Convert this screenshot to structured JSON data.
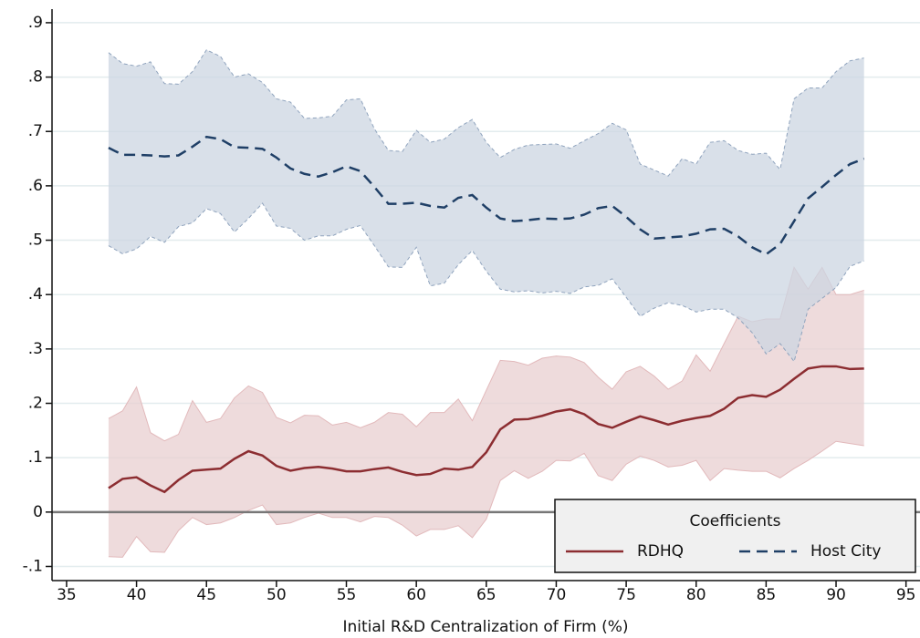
{
  "chart_data": {
    "type": "line",
    "x_label": "Initial R&D Centralization of Firm (%)",
    "x": [
      38,
      39,
      40,
      41,
      42,
      43,
      44,
      45,
      46,
      47,
      48,
      49,
      50,
      51,
      52,
      53,
      54,
      55,
      56,
      57,
      58,
      59,
      60,
      61,
      62,
      63,
      64,
      65,
      66,
      67,
      68,
      69,
      70,
      71,
      72,
      73,
      74,
      75,
      76,
      77,
      78,
      79,
      80,
      81,
      82,
      83,
      84,
      85,
      86,
      87,
      88,
      89,
      90,
      91,
      92
    ],
    "series": [
      {
        "name": "RDHQ",
        "color": "#8c2d31",
        "band_color": "#e8cfd0",
        "dash": false,
        "values": [
          0.044,
          0.061,
          0.064,
          0.049,
          0.037,
          0.059,
          0.076,
          0.078,
          0.08,
          0.098,
          0.112,
          0.104,
          0.085,
          0.076,
          0.081,
          0.083,
          0.08,
          0.075,
          0.075,
          0.079,
          0.082,
          0.074,
          0.068,
          0.07,
          0.08,
          0.078,
          0.083,
          0.11,
          0.152,
          0.17,
          0.171,
          0.177,
          0.185,
          0.189,
          0.18,
          0.162,
          0.155,
          0.166,
          0.176,
          0.169,
          0.161,
          0.168,
          0.173,
          0.177,
          0.19,
          0.21,
          0.215,
          0.212,
          0.225,
          0.245,
          0.264,
          0.268,
          0.268,
          0.263,
          0.264
        ],
        "upper": [
          0.172,
          0.186,
          0.23,
          0.146,
          0.131,
          0.143,
          0.205,
          0.165,
          0.172,
          0.21,
          0.232,
          0.22,
          0.174,
          0.164,
          0.178,
          0.177,
          0.16,
          0.165,
          0.155,
          0.165,
          0.183,
          0.18,
          0.157,
          0.183,
          0.183,
          0.208,
          0.168,
          0.224,
          0.279,
          0.277,
          0.27,
          0.283,
          0.287,
          0.285,
          0.275,
          0.248,
          0.226,
          0.258,
          0.268,
          0.25,
          0.226,
          0.241,
          0.289,
          0.259,
          0.31,
          0.36,
          0.35,
          0.355,
          0.355,
          0.45,
          0.41,
          0.45,
          0.4,
          0.4,
          0.408
        ],
        "lower": [
          -0.082,
          -0.083,
          -0.045,
          -0.073,
          -0.074,
          -0.034,
          -0.01,
          -0.023,
          -0.02,
          -0.01,
          0.003,
          0.013,
          -0.023,
          -0.02,
          -0.01,
          -0.002,
          -0.01,
          -0.01,
          -0.018,
          -0.008,
          -0.01,
          -0.024,
          -0.044,
          -0.032,
          -0.032,
          -0.025,
          -0.047,
          -0.013,
          0.058,
          0.076,
          0.062,
          0.075,
          0.095,
          0.094,
          0.108,
          0.067,
          0.058,
          0.088,
          0.103,
          0.095,
          0.083,
          0.086,
          0.095,
          0.058,
          0.08,
          0.077,
          0.075,
          0.075,
          0.063,
          0.08,
          0.095,
          0.112,
          0.13,
          0.126,
          0.122
        ]
      },
      {
        "name": "Host City",
        "color": "#1f3f66",
        "band_color": "#ccd6e2",
        "dash": true,
        "values": [
          0.67,
          0.657,
          0.657,
          0.656,
          0.654,
          0.656,
          0.672,
          0.69,
          0.686,
          0.671,
          0.67,
          0.668,
          0.652,
          0.632,
          0.622,
          0.617,
          0.625,
          0.636,
          0.627,
          0.598,
          0.567,
          0.567,
          0.569,
          0.563,
          0.56,
          0.578,
          0.583,
          0.56,
          0.54,
          0.535,
          0.537,
          0.54,
          0.539,
          0.54,
          0.547,
          0.559,
          0.563,
          0.543,
          0.52,
          0.503,
          0.505,
          0.507,
          0.512,
          0.52,
          0.521,
          0.507,
          0.487,
          0.474,
          0.493,
          0.535,
          0.577,
          0.598,
          0.62,
          0.64,
          0.65
        ],
        "upper": [
          0.845,
          0.825,
          0.82,
          0.828,
          0.788,
          0.787,
          0.81,
          0.85,
          0.838,
          0.8,
          0.806,
          0.79,
          0.76,
          0.754,
          0.724,
          0.725,
          0.728,
          0.758,
          0.76,
          0.705,
          0.665,
          0.663,
          0.702,
          0.68,
          0.686,
          0.707,
          0.722,
          0.68,
          0.652,
          0.667,
          0.675,
          0.676,
          0.677,
          0.669,
          0.683,
          0.696,
          0.715,
          0.703,
          0.64,
          0.629,
          0.618,
          0.65,
          0.64,
          0.68,
          0.683,
          0.665,
          0.658,
          0.66,
          0.63,
          0.76,
          0.78,
          0.78,
          0.81,
          0.83,
          0.835
        ],
        "lower": [
          0.49,
          0.475,
          0.484,
          0.507,
          0.496,
          0.525,
          0.532,
          0.558,
          0.549,
          0.515,
          0.54,
          0.568,
          0.526,
          0.522,
          0.5,
          0.508,
          0.508,
          0.52,
          0.527,
          0.49,
          0.451,
          0.45,
          0.487,
          0.416,
          0.421,
          0.455,
          0.481,
          0.443,
          0.41,
          0.405,
          0.407,
          0.403,
          0.406,
          0.402,
          0.414,
          0.417,
          0.429,
          0.395,
          0.36,
          0.375,
          0.385,
          0.38,
          0.368,
          0.373,
          0.373,
          0.357,
          0.33,
          0.291,
          0.31,
          0.277,
          0.373,
          0.393,
          0.413,
          0.452,
          0.462
        ]
      }
    ],
    "xlim": [
      33.96,
      96
    ],
    "xticks": [
      35,
      40,
      45,
      50,
      55,
      60,
      65,
      70,
      75,
      80,
      85,
      90,
      95
    ],
    "ylim": [
      -0.126,
      0.925
    ],
    "yticks": [
      {
        "value": -0.1,
        "label": "-.1"
      },
      0,
      {
        "value": 0.1,
        "label": ".1"
      },
      {
        "value": 0.2,
        "label": ".2"
      },
      {
        "value": 0.3,
        "label": ".3"
      },
      {
        "value": 0.4,
        "label": ".4"
      },
      {
        "value": 0.5,
        "label": ".5"
      },
      {
        "value": 0.6,
        "label": ".6"
      },
      {
        "value": 0.7,
        "label": ".7"
      },
      {
        "value": 0.8,
        "label": ".8"
      },
      {
        "value": 0.9,
        "label": ".9"
      }
    ],
    "reference_line": 0,
    "grid": true,
    "legend_title": "Coefficients",
    "legend_position": "bottom-right"
  }
}
